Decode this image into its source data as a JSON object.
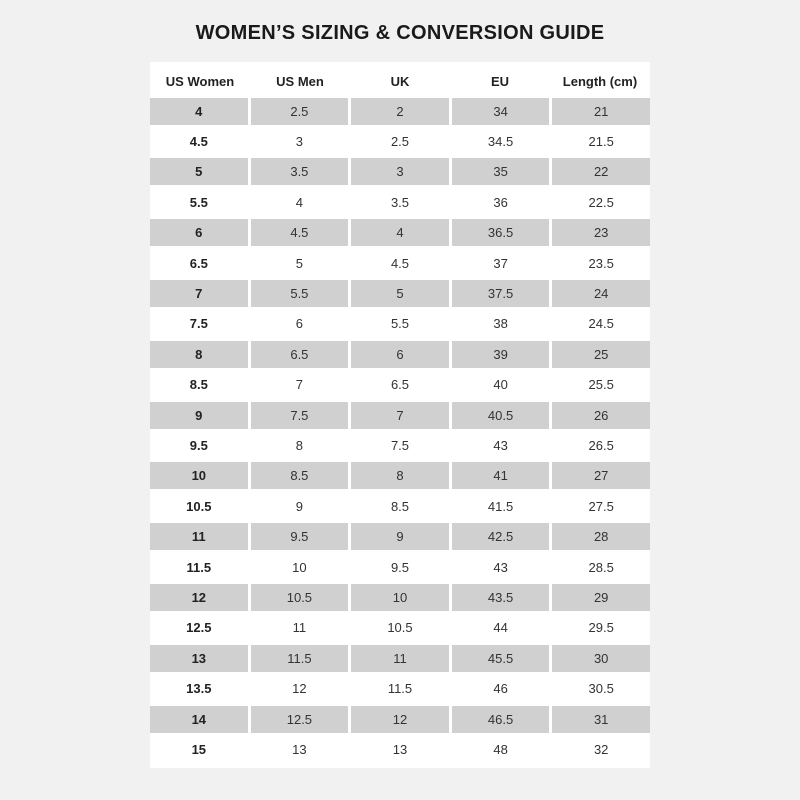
{
  "title": "WOMEN’S SIZING & CONVERSION GUIDE",
  "table": {
    "headers": [
      "US Women",
      "US Men",
      "UK",
      "EU",
      "Length (cm)"
    ],
    "rows": [
      [
        "4",
        "2.5",
        "2",
        "34",
        "21"
      ],
      [
        "4.5",
        "3",
        "2.5",
        "34.5",
        "21.5"
      ],
      [
        "5",
        "3.5",
        "3",
        "35",
        "22"
      ],
      [
        "5.5",
        "4",
        "3.5",
        "36",
        "22.5"
      ],
      [
        "6",
        "4.5",
        "4",
        "36.5",
        "23"
      ],
      [
        "6.5",
        "5",
        "4.5",
        "37",
        "23.5"
      ],
      [
        "7",
        "5.5",
        "5",
        "37.5",
        "24"
      ],
      [
        "7.5",
        "6",
        "5.5",
        "38",
        "24.5"
      ],
      [
        "8",
        "6.5",
        "6",
        "39",
        "25"
      ],
      [
        "8.5",
        "7",
        "6.5",
        "40",
        "25.5"
      ],
      [
        "9",
        "7.5",
        "7",
        "40.5",
        "26"
      ],
      [
        "9.5",
        "8",
        "7.5",
        "43",
        "26.5"
      ],
      [
        "10",
        "8.5",
        "8",
        "41",
        "27"
      ],
      [
        "10.5",
        "9",
        "8.5",
        "41.5",
        "27.5"
      ],
      [
        "11",
        "9.5",
        "9",
        "42.5",
        "28"
      ],
      [
        "11.5",
        "10",
        "9.5",
        "43",
        "28.5"
      ],
      [
        "12",
        "10.5",
        "10",
        "43.5",
        "29"
      ],
      [
        "12.5",
        "11",
        "10.5",
        "44",
        "29.5"
      ],
      [
        "13",
        "11.5",
        "11",
        "45.5",
        "30"
      ],
      [
        "13.5",
        "12",
        "11.5",
        "46",
        "30.5"
      ],
      [
        "14",
        "12.5",
        "12",
        "46.5",
        "31"
      ],
      [
        "15",
        "13",
        "13",
        "48",
        "32"
      ]
    ]
  },
  "colors": {
    "shaded_row": "#d0d0d0",
    "background": "#f1f1f1"
  }
}
